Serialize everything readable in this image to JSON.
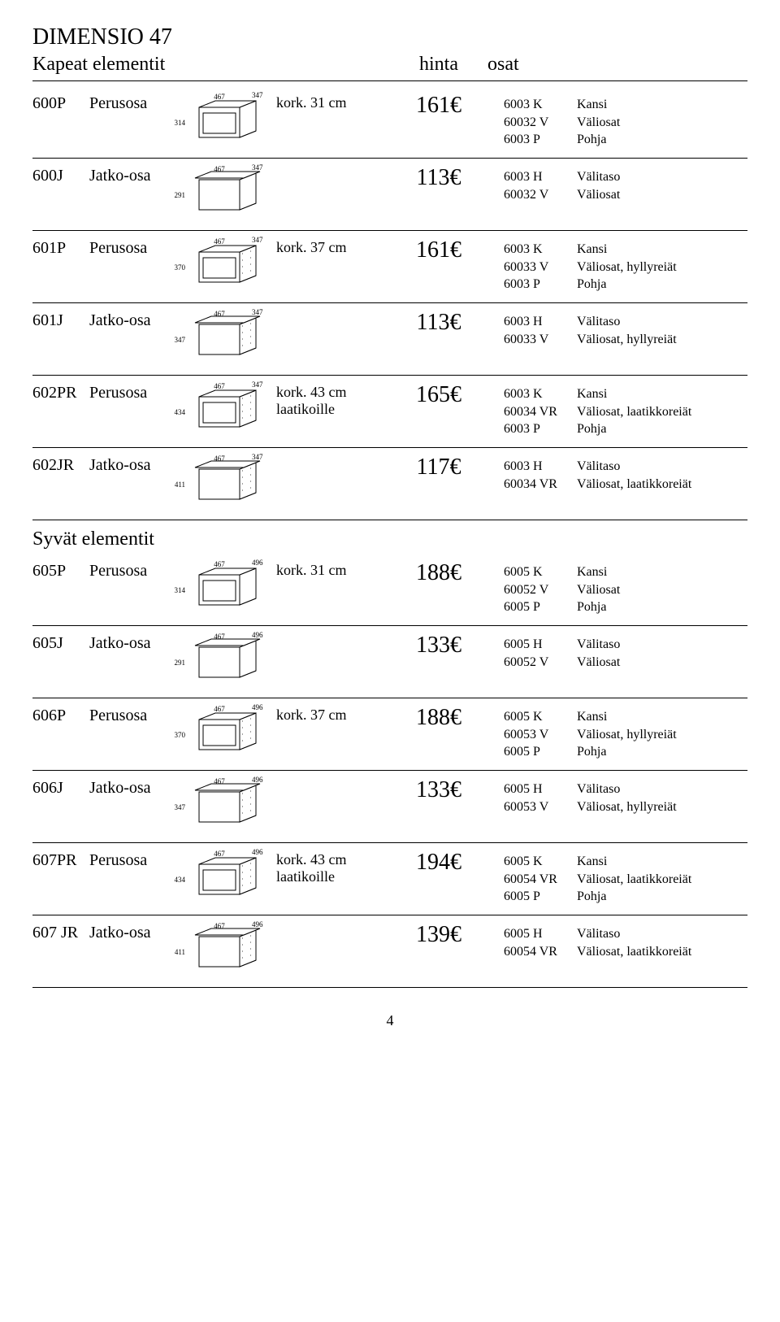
{
  "title": "DIMENSIO 47",
  "header": {
    "left": "Kapeat elementit",
    "mid": "hinta",
    "right": "osat"
  },
  "section2": "Syvät elementit",
  "page_number": "4",
  "rows": [
    {
      "code": "600P",
      "name": "Perusosa",
      "dims": {
        "h": "314",
        "w": "467",
        "d": "347"
      },
      "spec": "kork. 31 cm",
      "spec2": "",
      "price": "161€",
      "parts": [
        {
          "c": "6003 K",
          "d": "Kansi"
        },
        {
          "c": "60032 V",
          "d": "Väliosat"
        },
        {
          "c": "6003 P",
          "d": "Pohja"
        }
      ],
      "style": "top",
      "holes": false
    },
    {
      "code": "600J",
      "name": "Jatko-osa",
      "dims": {
        "h": "291",
        "w": "467",
        "d": "347"
      },
      "spec": "",
      "spec2": "",
      "price": "113€",
      "parts": [
        {
          "c": "6003 H",
          "d": "Välitaso"
        },
        {
          "c": "60032 V",
          "d": "Väliosat"
        }
      ],
      "style": "open",
      "holes": false
    },
    {
      "code": "601P",
      "name": "Perusosa",
      "dims": {
        "h": "370",
        "w": "467",
        "d": "347"
      },
      "spec": "kork. 37 cm",
      "spec2": "",
      "price": "161€",
      "parts": [
        {
          "c": "6003 K",
          "d": "Kansi"
        },
        {
          "c": "60033 V",
          "d": "Väliosat, hyllyreiät"
        },
        {
          "c": "6003 P",
          "d": "Pohja"
        }
      ],
      "style": "top",
      "holes": true
    },
    {
      "code": "601J",
      "name": "Jatko-osa",
      "dims": {
        "h": "347",
        "w": "467",
        "d": "347"
      },
      "spec": "",
      "spec2": "",
      "price": "113€",
      "parts": [
        {
          "c": "6003 H",
          "d": "Välitaso"
        },
        {
          "c": "60033 V",
          "d": "Väliosat, hyllyreiät"
        }
      ],
      "style": "open",
      "holes": true
    },
    {
      "code": "602PR",
      "name": "Perusosa",
      "dims": {
        "h": "434",
        "w": "467",
        "d": "347"
      },
      "spec": "kork. 43 cm",
      "spec2": "laatikoille",
      "price": "165€",
      "parts": [
        {
          "c": "6003 K",
          "d": "Kansi"
        },
        {
          "c": "60034 VR",
          "d": "Väliosat, laatikkoreiät"
        },
        {
          "c": "6003 P",
          "d": "Pohja"
        }
      ],
      "style": "top",
      "holes": true
    },
    {
      "code": "602JR",
      "name": "Jatko-osa",
      "dims": {
        "h": "411",
        "w": "467",
        "d": "347"
      },
      "spec": "",
      "spec2": "",
      "price": "117€",
      "parts": [
        {
          "c": "6003 H",
          "d": "Välitaso"
        },
        {
          "c": "60034 VR",
          "d": "Väliosat, laatikkoreiät"
        }
      ],
      "style": "open",
      "holes": true
    },
    {
      "code": "605P",
      "name": "Perusosa",
      "dims": {
        "h": "314",
        "w": "467",
        "d": "496"
      },
      "spec": "kork. 31 cm",
      "spec2": "",
      "price": "188€",
      "parts": [
        {
          "c": "6005 K",
          "d": "Kansi"
        },
        {
          "c": "60052 V",
          "d": "Väliosat"
        },
        {
          "c": "6005 P",
          "d": "Pohja"
        }
      ],
      "style": "top",
      "holes": false
    },
    {
      "code": "605J",
      "name": "Jatko-osa",
      "dims": {
        "h": "291",
        "w": "467",
        "d": "496"
      },
      "spec": "",
      "spec2": "",
      "price": "133€",
      "parts": [
        {
          "c": "6005 H",
          "d": "Välitaso"
        },
        {
          "c": "60052 V",
          "d": "Väliosat"
        }
      ],
      "style": "open",
      "holes": false
    },
    {
      "code": "606P",
      "name": "Perusosa",
      "dims": {
        "h": "370",
        "w": "467",
        "d": "496"
      },
      "spec": "kork. 37 cm",
      "spec2": "",
      "price": "188€",
      "parts": [
        {
          "c": "6005 K",
          "d": "Kansi"
        },
        {
          "c": "60053 V",
          "d": "Väliosat, hyllyreiät"
        },
        {
          "c": "6005 P",
          "d": "Pohja"
        }
      ],
      "style": "top",
      "holes": true
    },
    {
      "code": "606J",
      "name": "Jatko-osa",
      "dims": {
        "h": "347",
        "w": "467",
        "d": "496"
      },
      "spec": "",
      "spec2": "",
      "price": "133€",
      "parts": [
        {
          "c": "6005 H",
          "d": "Välitaso"
        },
        {
          "c": "60053 V",
          "d": "Väliosat, hyllyreiät"
        }
      ],
      "style": "open",
      "holes": true
    },
    {
      "code": "607PR",
      "name": "Perusosa",
      "dims": {
        "h": "434",
        "w": "467",
        "d": "496"
      },
      "spec": "kork. 43 cm",
      "spec2": "laatikoille",
      "price": "194€",
      "parts": [
        {
          "c": "6005 K",
          "d": "Kansi"
        },
        {
          "c": "60054 VR",
          "d": "Väliosat, laatikkoreiät"
        },
        {
          "c": "6005 P",
          "d": "Pohja"
        }
      ],
      "style": "top",
      "holes": true
    },
    {
      "code": "607 JR",
      "name": "Jatko-osa",
      "dims": {
        "h": "411",
        "w": "467",
        "d": "496"
      },
      "spec": "",
      "spec2": "",
      "price": "139€",
      "parts": [
        {
          "c": "6005 H",
          "d": "Välitaso"
        },
        {
          "c": "60054 VR",
          "d": "Väliosat, laatikkoreiät"
        }
      ],
      "style": "open",
      "holes": true
    }
  ]
}
